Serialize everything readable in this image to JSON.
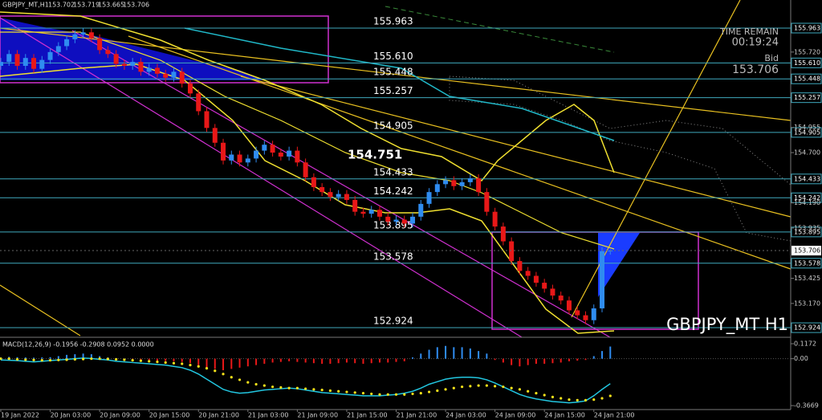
{
  "chart_data": [
    {
      "type": "candlestick",
      "symbol_label": "GBPJPY_MT,H1",
      "watermark": "GBPJPY_MT H1",
      "highlight_label": "154.751",
      "time_remain_label": "TIME REMAIN",
      "time_remain": "00:19:24",
      "bid_label": "Bid",
      "bid": 153.706,
      "current_price": 153.706,
      "up_color": "#2f8cf0",
      "down_color": "#e81818",
      "level_color": "#3fa9bd",
      "xlim": [
        0,
        96
      ],
      "ylim": [
        152.843,
        156.248
      ],
      "xticks": [
        {
          "value": 0,
          "label": "19 Jan 2022"
        },
        {
          "value": 6,
          "label": "20 Jan 03:00"
        },
        {
          "value": 12,
          "label": "20 Jan 09:00"
        },
        {
          "value": 18,
          "label": "20 Jan 15:00"
        },
        {
          "value": 24,
          "label": "20 Jan 21:00"
        },
        {
          "value": 30,
          "label": "21 Jan 03:00"
        },
        {
          "value": 36,
          "label": "21 Jan 09:00"
        },
        {
          "value": 42,
          "label": "21 Jan 15:00"
        },
        {
          "value": 48,
          "label": "21 Jan 21:00"
        },
        {
          "value": 54,
          "label": "24 Jan 03:00"
        },
        {
          "value": 60,
          "label": "24 Jan 09:00"
        },
        {
          "value": 66,
          "label": "24 Jan 15:00"
        },
        {
          "value": 72,
          "label": "24 Jan 21:00"
        }
      ],
      "yticks": [
        {
          "value": 155.72,
          "label": "155.720"
        },
        154.955,
        {
          "value": 154.7,
          "label": "154.700"
        },
        {
          "value": 154.19,
          "label": "154.190"
        },
        153.935,
        153.425,
        {
          "value": 153.17,
          "label": "153.170"
        }
      ],
      "levels": [
        155.963,
        {
          "value": 155.61,
          "label": "155.610"
        },
        155.448,
        155.257,
        154.905,
        154.433,
        154.242,
        153.895,
        153.578,
        152.924
      ],
      "candles": [
        [
          155.58,
          155.66,
          155.54,
          155.62
        ],
        [
          155.62,
          155.74,
          155.58,
          155.7
        ],
        [
          155.7,
          155.74,
          155.54,
          155.58
        ],
        [
          155.58,
          155.7,
          155.54,
          155.66
        ],
        [
          155.66,
          155.7,
          155.51,
          155.55
        ],
        [
          155.55,
          155.68,
          155.51,
          155.64
        ],
        [
          155.64,
          155.76,
          155.6,
          155.72
        ],
        [
          155.72,
          155.82,
          155.68,
          155.78
        ],
        [
          155.78,
          155.89,
          155.74,
          155.85
        ],
        [
          155.85,
          155.94,
          155.81,
          155.9
        ],
        [
          155.9,
          155.96,
          155.86,
          155.92
        ],
        [
          155.92,
          155.96,
          155.82,
          155.86
        ],
        [
          155.86,
          155.9,
          155.7,
          155.74
        ],
        [
          155.74,
          155.78,
          155.66,
          155.7
        ],
        [
          155.7,
          155.74,
          155.56,
          155.6
        ],
        [
          155.6,
          155.64,
          155.54,
          155.58
        ],
        [
          155.58,
          155.66,
          155.54,
          155.62
        ],
        [
          155.62,
          155.66,
          155.48,
          155.52
        ],
        [
          155.52,
          155.6,
          155.48,
          155.56
        ],
        [
          155.56,
          155.6,
          155.46,
          155.5
        ],
        [
          155.5,
          155.54,
          155.42,
          155.46
        ],
        [
          155.46,
          155.56,
          155.42,
          155.52
        ],
        [
          155.52,
          155.56,
          155.36,
          155.4
        ],
        [
          155.4,
          155.44,
          155.26,
          155.3
        ],
        [
          155.3,
          155.34,
          155.08,
          155.12
        ],
        [
          155.12,
          155.16,
          154.91,
          154.95
        ],
        [
          154.95,
          154.99,
          154.76,
          154.8
        ],
        [
          154.8,
          154.84,
          154.58,
          154.62
        ],
        [
          154.62,
          154.72,
          154.58,
          154.68
        ],
        [
          154.68,
          154.72,
          154.56,
          154.6
        ],
        [
          154.6,
          154.68,
          154.56,
          154.64
        ],
        [
          154.64,
          154.76,
          154.6,
          154.72
        ],
        [
          154.72,
          154.82,
          154.68,
          154.78
        ],
        [
          154.78,
          154.82,
          154.66,
          154.7
        ],
        [
          154.7,
          154.74,
          154.62,
          154.66
        ],
        [
          154.66,
          154.76,
          154.62,
          154.72
        ],
        [
          154.72,
          154.76,
          154.56,
          154.6
        ],
        [
          154.6,
          154.64,
          154.41,
          154.45
        ],
        [
          154.45,
          154.49,
          154.31,
          154.35
        ],
        [
          154.35,
          154.39,
          154.26,
          154.3
        ],
        [
          154.3,
          154.34,
          154.21,
          154.25
        ],
        [
          154.25,
          154.32,
          154.21,
          154.28
        ],
        [
          154.28,
          154.32,
          154.18,
          154.22
        ],
        [
          154.22,
          154.26,
          154.06,
          154.1
        ],
        [
          154.1,
          154.14,
          154.04,
          154.08
        ],
        [
          154.08,
          154.16,
          154.04,
          154.12
        ],
        [
          154.12,
          154.16,
          154.01,
          154.05
        ],
        [
          154.05,
          154.09,
          153.96,
          154.0
        ],
        [
          154.0,
          154.06,
          153.96,
          154.02
        ],
        [
          154.02,
          154.06,
          153.94,
          153.98
        ],
        [
          153.98,
          154.09,
          153.94,
          154.05
        ],
        [
          154.05,
          154.22,
          154.01,
          154.18
        ],
        [
          154.18,
          154.34,
          154.14,
          154.3
        ],
        [
          154.3,
          154.42,
          154.26,
          154.38
        ],
        [
          154.38,
          154.46,
          154.34,
          154.42
        ],
        [
          154.42,
          154.46,
          154.32,
          154.36
        ],
        [
          154.36,
          154.44,
          154.32,
          154.4
        ],
        [
          154.4,
          154.48,
          154.36,
          154.44
        ],
        [
          154.44,
          154.48,
          154.26,
          154.3
        ],
        [
          154.3,
          154.34,
          154.06,
          154.1
        ],
        [
          154.1,
          154.14,
          153.91,
          153.95
        ],
        [
          153.95,
          153.99,
          153.76,
          153.8
        ],
        [
          153.8,
          153.84,
          153.56,
          153.6
        ],
        [
          153.6,
          153.64,
          153.46,
          153.5
        ],
        [
          153.5,
          153.54,
          153.41,
          153.45
        ],
        [
          153.45,
          153.49,
          153.34,
          153.38
        ],
        [
          153.38,
          153.42,
          153.28,
          153.32
        ],
        [
          153.32,
          153.36,
          153.21,
          153.25
        ],
        [
          153.25,
          153.29,
          153.16,
          153.2
        ],
        [
          153.2,
          153.24,
          153.06,
          153.1
        ],
        [
          153.1,
          153.14,
          153.01,
          153.05
        ],
        [
          153.05,
          153.09,
          152.96,
          153.0
        ],
        [
          153.0,
          153.16,
          152.96,
          153.12
        ],
        [
          153.12,
          153.74,
          153.08,
          153.7
        ],
        [
          153.702,
          153.719,
          153.665,
          153.706
        ]
      ]
    },
    {
      "type": "macd",
      "label": "MACD(12,26,9) -0.1956 -0.2908 0.0952 0.0000",
      "xlim": [
        0,
        96
      ],
      "ylim": [
        -0.398,
        0.155
      ],
      "yticks": [
        0.1172,
        {
          "value": 0,
          "label": "0.00"
        },
        -0.3669
      ],
      "up_color": "#2f8cf0",
      "down_color": "#e81818",
      "main_color": "#22c6e0",
      "signal_color": "#f5e21a",
      "values": [
        0.01,
        0.015,
        0.012,
        0.01,
        0.008,
        0.01,
        0.012,
        0.02,
        0.03,
        0.035,
        0.04,
        0.035,
        0.02,
        0.01,
        0.005,
        -0.005,
        -0.008,
        -0.012,
        -0.01,
        -0.015,
        -0.018,
        -0.02,
        -0.025,
        -0.035,
        -0.05,
        -0.07,
        -0.08,
        -0.09,
        -0.08,
        -0.07,
        -0.06,
        -0.05,
        -0.04,
        -0.03,
        -0.025,
        -0.02,
        -0.025,
        -0.03,
        -0.035,
        -0.04,
        -0.04,
        -0.035,
        -0.03,
        -0.035,
        -0.04,
        -0.035,
        -0.03,
        -0.03,
        -0.025,
        -0.02,
        0.01,
        0.04,
        0.07,
        0.09,
        0.1,
        0.09,
        0.09,
        0.08,
        0.06,
        0.04,
        -0.01,
        -0.03,
        -0.05,
        -0.06,
        -0.05,
        -0.04,
        -0.04,
        -0.035,
        -0.03,
        -0.02,
        -0.015,
        -0.01,
        0.02,
        0.06,
        0.0952
      ],
      "main_values": [
        -0.01,
        -0.012,
        -0.015,
        -0.02,
        -0.025,
        -0.02,
        -0.015,
        -0.01,
        -0.005,
        0.0,
        0.005,
        0.002,
        -0.005,
        -0.01,
        -0.02,
        -0.025,
        -0.03,
        -0.035,
        -0.04,
        -0.045,
        -0.05,
        -0.06,
        -0.07,
        -0.09,
        -0.12,
        -0.16,
        -0.2,
        -0.24,
        -0.26,
        -0.27,
        -0.265,
        -0.255,
        -0.245,
        -0.24,
        -0.235,
        -0.23,
        -0.235,
        -0.245,
        -0.255,
        -0.265,
        -0.27,
        -0.275,
        -0.28,
        -0.285,
        -0.29,
        -0.29,
        -0.29,
        -0.285,
        -0.28,
        -0.27,
        -0.255,
        -0.23,
        -0.2,
        -0.18,
        -0.16,
        -0.15,
        -0.145,
        -0.145,
        -0.15,
        -0.165,
        -0.19,
        -0.22,
        -0.25,
        -0.28,
        -0.3,
        -0.315,
        -0.325,
        -0.335,
        -0.34,
        -0.345,
        -0.34,
        -0.33,
        -0.29,
        -0.24,
        -0.1956
      ],
      "signal_values": [
        0.0,
        0.0,
        -0.005,
        -0.008,
        -0.01,
        -0.012,
        -0.012,
        -0.01,
        -0.008,
        -0.005,
        -0.003,
        0.0,
        0.0,
        -0.002,
        -0.005,
        -0.008,
        -0.012,
        -0.016,
        -0.02,
        -0.025,
        -0.03,
        -0.035,
        -0.04,
        -0.05,
        -0.06,
        -0.075,
        -0.095,
        -0.12,
        -0.145,
        -0.165,
        -0.185,
        -0.2,
        -0.21,
        -0.22,
        -0.225,
        -0.23,
        -0.23,
        -0.235,
        -0.24,
        -0.245,
        -0.25,
        -0.255,
        -0.26,
        -0.265,
        -0.27,
        -0.275,
        -0.28,
        -0.28,
        -0.28,
        -0.28,
        -0.275,
        -0.27,
        -0.26,
        -0.25,
        -0.24,
        -0.23,
        -0.22,
        -0.215,
        -0.21,
        -0.21,
        -0.215,
        -0.22,
        -0.23,
        -0.24,
        -0.255,
        -0.27,
        -0.285,
        -0.3,
        -0.31,
        -0.32,
        -0.325,
        -0.325,
        -0.32,
        -0.31,
        -0.2908
      ]
    }
  ]
}
